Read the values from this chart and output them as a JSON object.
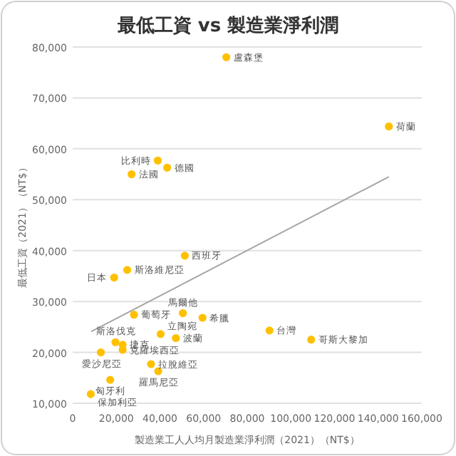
{
  "chart_data": {
    "type": "scatter",
    "title": "最低工資 vs 製造業淨利潤",
    "xlabel": "製造業工人人均月製造業淨利潤（2021）（NT$）",
    "ylabel": "最低工資（2021）（NT$）",
    "xlim": [
      0,
      160000
    ],
    "xticks": [
      {
        "value": 0,
        "label": "0"
      },
      {
        "value": 20000,
        "label": "20,000"
      },
      {
        "value": 40000,
        "label": "40,000"
      },
      {
        "value": 60000,
        "label": "60,000"
      },
      {
        "value": 80000,
        "label": "80,000"
      },
      {
        "value": 100000,
        "label": "100,000"
      },
      {
        "value": 120000,
        "label": "120,000"
      },
      {
        "value": 140000,
        "label": "140,000"
      },
      {
        "value": 160000,
        "label": "160,000"
      }
    ],
    "ylim": [
      10000,
      80000
    ],
    "yticks": [
      {
        "value": 10000,
        "label": "10,000"
      },
      {
        "value": 20000,
        "label": "20,000"
      },
      {
        "value": 30000,
        "label": "30,000"
      },
      {
        "value": 40000,
        "label": "40,000"
      },
      {
        "value": 50000,
        "label": "50,000"
      },
      {
        "value": 60000,
        "label": "60,000"
      },
      {
        "value": 70000,
        "label": "70,000"
      },
      {
        "value": 80000,
        "label": "80,000"
      }
    ],
    "grid": "y",
    "series": [
      {
        "type": "scatter",
        "marker": "circle",
        "color": "#ffc000",
        "x": [
          70400,
          144900,
          39000,
          43300,
          27000,
          51400,
          25000,
          19000,
          28100,
          50500,
          59500,
          90200,
          109300,
          19600,
          22900,
          22900,
          12900,
          40300,
          47300,
          35900,
          39200,
          17200,
          8300
        ],
        "values": [
          78000,
          64400,
          57700,
          56300,
          55000,
          39000,
          36200,
          34700,
          27400,
          27700,
          26800,
          24300,
          22500,
          22000,
          21500,
          20500,
          20000,
          23600,
          22800,
          17700,
          16300,
          14600,
          11800
        ]
      },
      {
        "type": "line",
        "color": "#a6a6a6",
        "x": [
          8500,
          144900
        ],
        "values": [
          24100,
          54500
        ]
      }
    ],
    "annotations": [
      {
        "text": "盧森堡",
        "x": 70400,
        "y": 78000
      },
      {
        "text": "荷蘭",
        "x": 144900,
        "y": 64400
      },
      {
        "text": "比利時",
        "x": 39000,
        "y": 57700
      },
      {
        "text": "德國",
        "x": 43300,
        "y": 56300
      },
      {
        "text": "法國",
        "x": 27000,
        "y": 55000
      },
      {
        "text": "西班牙",
        "x": 51400,
        "y": 39000
      },
      {
        "text": "斯洛維尼亞",
        "x": 25000,
        "y": 36200
      },
      {
        "text": "日本",
        "x": 19000,
        "y": 34700
      },
      {
        "text": "葡萄牙",
        "x": 28100,
        "y": 27400
      },
      {
        "text": "馬爾他",
        "x": 50500,
        "y": 27700
      },
      {
        "text": "希臘",
        "x": 59500,
        "y": 26800
      },
      {
        "text": "台灣",
        "x": 90200,
        "y": 24300
      },
      {
        "text": "哥斯大黎加",
        "x": 109300,
        "y": 22500
      },
      {
        "text": "斯洛伐克",
        "x": 19600,
        "y": 22000
      },
      {
        "text": "捷克",
        "x": 22900,
        "y": 21500
      },
      {
        "text": "克羅埃西亞",
        "x": 22900,
        "y": 20500
      },
      {
        "text": "愛沙尼亞",
        "x": 12900,
        "y": 20000
      },
      {
        "text": "立陶宛",
        "x": 40300,
        "y": 23600
      },
      {
        "text": "波蘭",
        "x": 47300,
        "y": 22800
      },
      {
        "text": "拉脫維亞",
        "x": 35900,
        "y": 17700
      },
      {
        "text": "羅馬尼亞",
        "x": 39200,
        "y": 16300
      },
      {
        "text": "匈牙利",
        "x": 17200,
        "y": 14600
      },
      {
        "text": "保加利亞",
        "x": 8300,
        "y": 11800
      }
    ]
  }
}
